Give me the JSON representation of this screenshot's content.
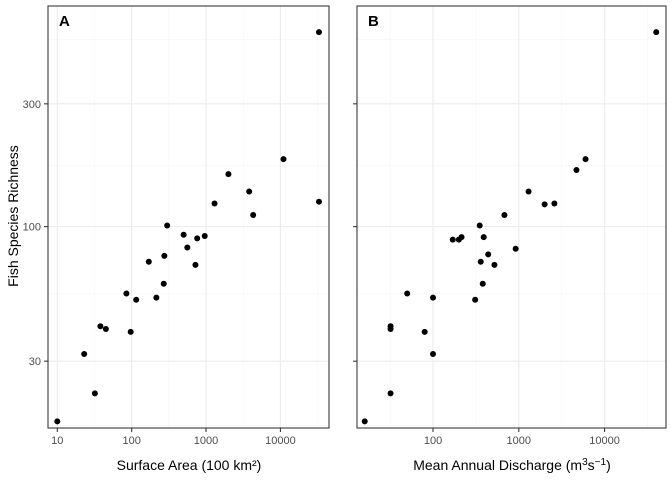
{
  "chart_data": [
    {
      "type": "scatter",
      "tag": "A",
      "title": "",
      "xlabel": "Surface Area (100 km²)",
      "ylabel": "Fish Species Richness",
      "x_scale": "log10",
      "y_scale": "log10",
      "xlim": [
        7.5,
        45000
      ],
      "ylim": [
        16.5,
        720
      ],
      "x_ticks": [
        10,
        100,
        1000,
        10000
      ],
      "x_tick_labels": [
        "10",
        "100",
        "1000",
        "10000"
      ],
      "y_ticks": [
        30,
        100,
        300
      ],
      "y_tick_labels": [
        "30",
        "100",
        "300"
      ],
      "grid": true,
      "points": [
        {
          "x": 10,
          "y": 17.5
        },
        {
          "x": 23,
          "y": 32
        },
        {
          "x": 32,
          "y": 22.5
        },
        {
          "x": 38,
          "y": 41
        },
        {
          "x": 45,
          "y": 40
        },
        {
          "x": 85,
          "y": 55
        },
        {
          "x": 97,
          "y": 39
        },
        {
          "x": 115,
          "y": 52
        },
        {
          "x": 170,
          "y": 73
        },
        {
          "x": 215,
          "y": 53
        },
        {
          "x": 270,
          "y": 60
        },
        {
          "x": 275,
          "y": 77
        },
        {
          "x": 300,
          "y": 101
        },
        {
          "x": 500,
          "y": 93
        },
        {
          "x": 560,
          "y": 83
        },
        {
          "x": 720,
          "y": 71
        },
        {
          "x": 760,
          "y": 90
        },
        {
          "x": 960,
          "y": 92
        },
        {
          "x": 1300,
          "y": 123
        },
        {
          "x": 2000,
          "y": 160
        },
        {
          "x": 3800,
          "y": 137
        },
        {
          "x": 4300,
          "y": 111
        },
        {
          "x": 11000,
          "y": 183
        },
        {
          "x": 33000,
          "y": 125
        },
        {
          "x": 33000,
          "y": 570
        }
      ]
    },
    {
      "type": "scatter",
      "tag": "B",
      "title": "",
      "xlabel_main": "Mean Annual Discharge (m",
      "xlabel_sup1": "3",
      "xlabel_mid": "s",
      "xlabel_sup2": "−1",
      "xlabel_end": ")",
      "x_scale": "log10",
      "y_scale": "log10",
      "xlim": [
        13,
        52000
      ],
      "ylim": [
        16.5,
        720
      ],
      "x_ticks": [
        100,
        1000,
        10000
      ],
      "x_tick_labels": [
        "100",
        "1000",
        "10000"
      ],
      "y_ticks": [
        30,
        100,
        300
      ],
      "grid": true,
      "points": [
        {
          "x": 16,
          "y": 17.5
        },
        {
          "x": 32,
          "y": 22.5
        },
        {
          "x": 32,
          "y": 40
        },
        {
          "x": 32,
          "y": 41
        },
        {
          "x": 80,
          "y": 39
        },
        {
          "x": 100,
          "y": 32
        },
        {
          "x": 100,
          "y": 53
        },
        {
          "x": 50,
          "y": 55
        },
        {
          "x": 170,
          "y": 89
        },
        {
          "x": 200,
          "y": 89
        },
        {
          "x": 215,
          "y": 91
        },
        {
          "x": 310,
          "y": 52
        },
        {
          "x": 350,
          "y": 101
        },
        {
          "x": 360,
          "y": 73
        },
        {
          "x": 380,
          "y": 60
        },
        {
          "x": 390,
          "y": 91
        },
        {
          "x": 440,
          "y": 78
        },
        {
          "x": 520,
          "y": 71
        },
        {
          "x": 680,
          "y": 111
        },
        {
          "x": 920,
          "y": 82
        },
        {
          "x": 1300,
          "y": 137
        },
        {
          "x": 2000,
          "y": 122
        },
        {
          "x": 2600,
          "y": 123
        },
        {
          "x": 4700,
          "y": 166
        },
        {
          "x": 6000,
          "y": 183
        },
        {
          "x": 40000,
          "y": 570
        }
      ]
    }
  ]
}
